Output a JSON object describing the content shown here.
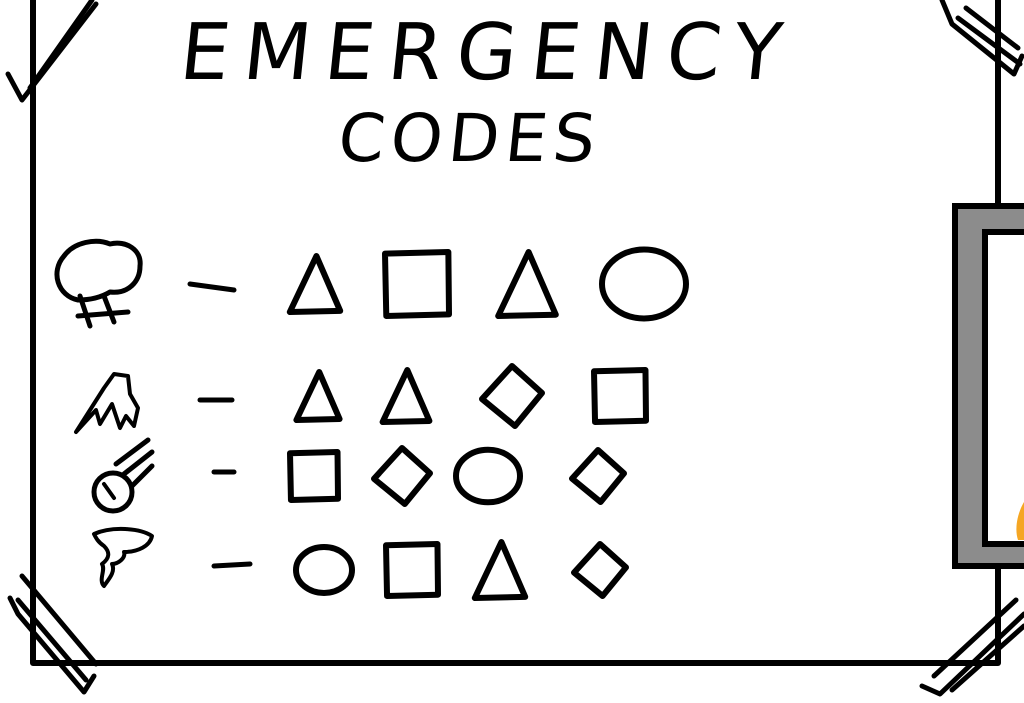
{
  "title": {
    "line1": "Emergency",
    "line2": "Codes"
  },
  "colors": {
    "ink": "#000000",
    "paper": "#ffffff",
    "frame_grey": "#8c8c8c",
    "flame": "#f5a623"
  },
  "codes": [
    {
      "hazard": "explosion-icon",
      "separator": "-",
      "symbols": [
        "triangle",
        "square",
        "triangle",
        "circle"
      ]
    },
    {
      "hazard": "fire-icon",
      "separator": "-",
      "symbols": [
        "triangle",
        "triangle",
        "diamond",
        "square"
      ]
    },
    {
      "hazard": "meteor-icon",
      "separator": "-",
      "symbols": [
        "square",
        "diamond",
        "circle",
        "diamond"
      ]
    },
    {
      "hazard": "tornado-icon",
      "separator": "-",
      "symbols": [
        "circle",
        "square",
        "triangle",
        "diamond"
      ]
    }
  ]
}
